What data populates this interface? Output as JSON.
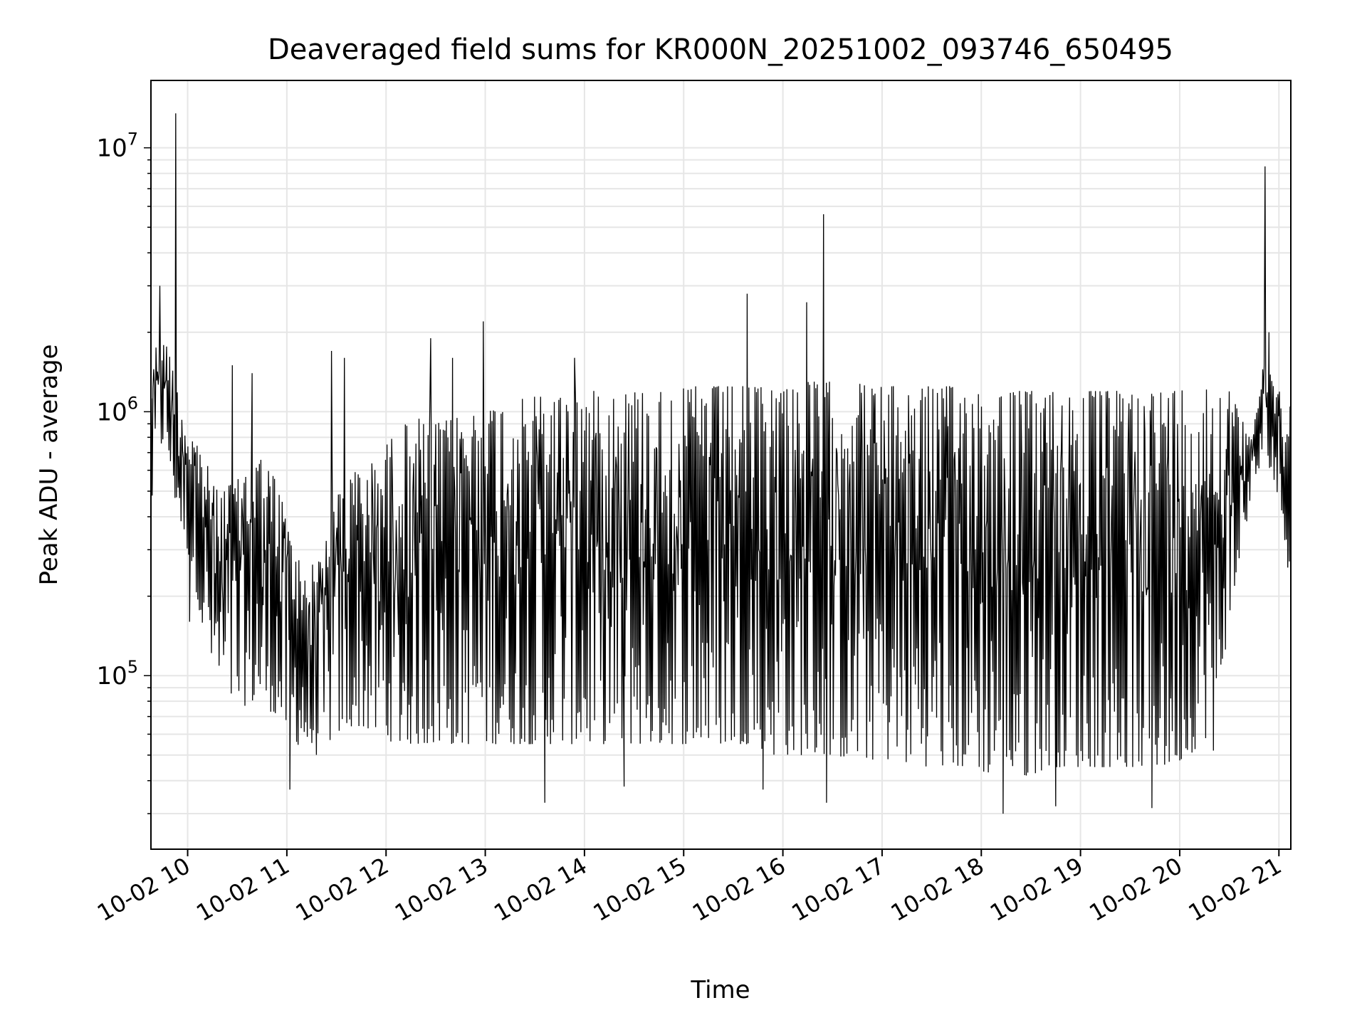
{
  "chart_data": {
    "type": "line",
    "title": "Deaveraged field sums for KR000N_20251002_093746_650495",
    "xlabel": "Time",
    "ylabel": "Peak ADU - average",
    "yscale": "log",
    "ylim": [
      22000,
      18000000
    ],
    "xlim_hours": [
      9.63,
      21.12
    ],
    "x_ticks": [
      {
        "hour": 10,
        "label": "10-02 10"
      },
      {
        "hour": 11,
        "label": "10-02 11"
      },
      {
        "hour": 12,
        "label": "10-02 12"
      },
      {
        "hour": 13,
        "label": "10-02 13"
      },
      {
        "hour": 14,
        "label": "10-02 14"
      },
      {
        "hour": 15,
        "label": "10-02 15"
      },
      {
        "hour": 16,
        "label": "10-02 16"
      },
      {
        "hour": 17,
        "label": "10-02 17"
      },
      {
        "hour": 18,
        "label": "10-02 18"
      },
      {
        "hour": 19,
        "label": "10-02 19"
      },
      {
        "hour": 20,
        "label": "10-02 20"
      },
      {
        "hour": 21,
        "label": "10-02 21"
      }
    ],
    "y_ticks": [
      {
        "value": 100000,
        "base": "10",
        "exp": "5"
      },
      {
        "value": 1000000,
        "base": "10",
        "exp": "6"
      },
      {
        "value": 10000000,
        "base": "10",
        "exp": "7"
      }
    ],
    "grid": true,
    "line_color": "#000000",
    "grid_color": "#e6e6e6",
    "series": [
      {
        "name": "deaveraged field sums",
        "x_hours": [
          9.63,
          9.7,
          9.78,
          9.85,
          9.95,
          10.05,
          10.15,
          10.3,
          10.5,
          10.7,
          10.9,
          11.1,
          11.3,
          11.5,
          11.7,
          11.9,
          12.1,
          12.3,
          12.5,
          12.7,
          12.9,
          13.1,
          13.3,
          13.5,
          13.7,
          13.9,
          14.1,
          14.3,
          14.5,
          14.7,
          14.9,
          15.1,
          15.3,
          15.5,
          15.7,
          15.9,
          16.1,
          16.3,
          16.5,
          16.7,
          16.9,
          17.1,
          17.3,
          17.5,
          17.7,
          17.9,
          18.1,
          18.3,
          18.5,
          18.7,
          18.9,
          19.1,
          19.3,
          19.5,
          19.7,
          19.9,
          20.1,
          20.3,
          20.5,
          20.65,
          20.75,
          20.85,
          20.95,
          21.05,
          21.12
        ],
        "upper": [
          1500000,
          1900000,
          1800000,
          1600000,
          1000000,
          850000,
          700000,
          500000,
          550000,
          700000,
          550000,
          280000,
          260000,
          500000,
          600000,
          650000,
          850000,
          950000,
          900000,
          950000,
          1000000,
          1050000,
          1100000,
          1150000,
          1150000,
          1150000,
          1200000,
          1200000,
          1200000,
          1200000,
          1200000,
          1250000,
          1250000,
          1250000,
          1250000,
          1250000,
          1300000,
          1300000,
          1300000,
          1300000,
          1250000,
          1250000,
          1250000,
          1250000,
          1250000,
          1250000,
          1200000,
          1200000,
          1200000,
          1200000,
          1200000,
          1200000,
          1200000,
          1200000,
          1200000,
          1200000,
          1250000,
          1250000,
          1200000,
          900000,
          1000000,
          1600000,
          1300000,
          1200000,
          1100000
        ],
        "lower": [
          400000,
          700000,
          800000,
          500000,
          350000,
          250000,
          150000,
          90000,
          75000,
          80000,
          70000,
          55000,
          50000,
          60000,
          65000,
          60000,
          55000,
          55000,
          55000,
          55000,
          55000,
          55000,
          55000,
          55000,
          55000,
          55000,
          55000,
          55000,
          55000,
          55000,
          55000,
          55000,
          55000,
          55000,
          55000,
          50000,
          50000,
          50000,
          50000,
          48000,
          48000,
          48000,
          46000,
          45000,
          45000,
          45000,
          42000,
          40000,
          42000,
          45000,
          45000,
          45000,
          45000,
          45000,
          45000,
          45000,
          50000,
          60000,
          150000,
          350000,
          500000,
          700000,
          550000,
          350000,
          200000
        ],
        "peaks": [
          {
            "hour": 9.88,
            "value": 13500000
          },
          {
            "hour": 9.72,
            "value": 3000000
          },
          {
            "hour": 10.45,
            "value": 1500000
          },
          {
            "hour": 10.65,
            "value": 1400000
          },
          {
            "hour": 11.45,
            "value": 1700000
          },
          {
            "hour": 11.58,
            "value": 1600000
          },
          {
            "hour": 12.45,
            "value": 1900000
          },
          {
            "hour": 12.67,
            "value": 1600000
          },
          {
            "hour": 12.98,
            "value": 2200000
          },
          {
            "hour": 13.9,
            "value": 1600000
          },
          {
            "hour": 15.64,
            "value": 2800000
          },
          {
            "hour": 16.24,
            "value": 2600000
          },
          {
            "hour": 16.41,
            "value": 5600000
          },
          {
            "hour": 20.86,
            "value": 8500000
          },
          {
            "hour": 20.9,
            "value": 2000000
          }
        ],
        "dips": [
          {
            "hour": 10.02,
            "value": 160000
          },
          {
            "hour": 11.03,
            "value": 37000
          },
          {
            "hour": 13.6,
            "value": 33000
          },
          {
            "hour": 14.4,
            "value": 38000
          },
          {
            "hour": 15.8,
            "value": 37000
          },
          {
            "hour": 16.44,
            "value": 33000
          },
          {
            "hour": 18.22,
            "value": 30000
          },
          {
            "hour": 18.75,
            "value": 32000
          },
          {
            "hour": 19.72,
            "value": 31500
          },
          {
            "hour": 20.34,
            "value": 52000
          }
        ]
      }
    ]
  }
}
